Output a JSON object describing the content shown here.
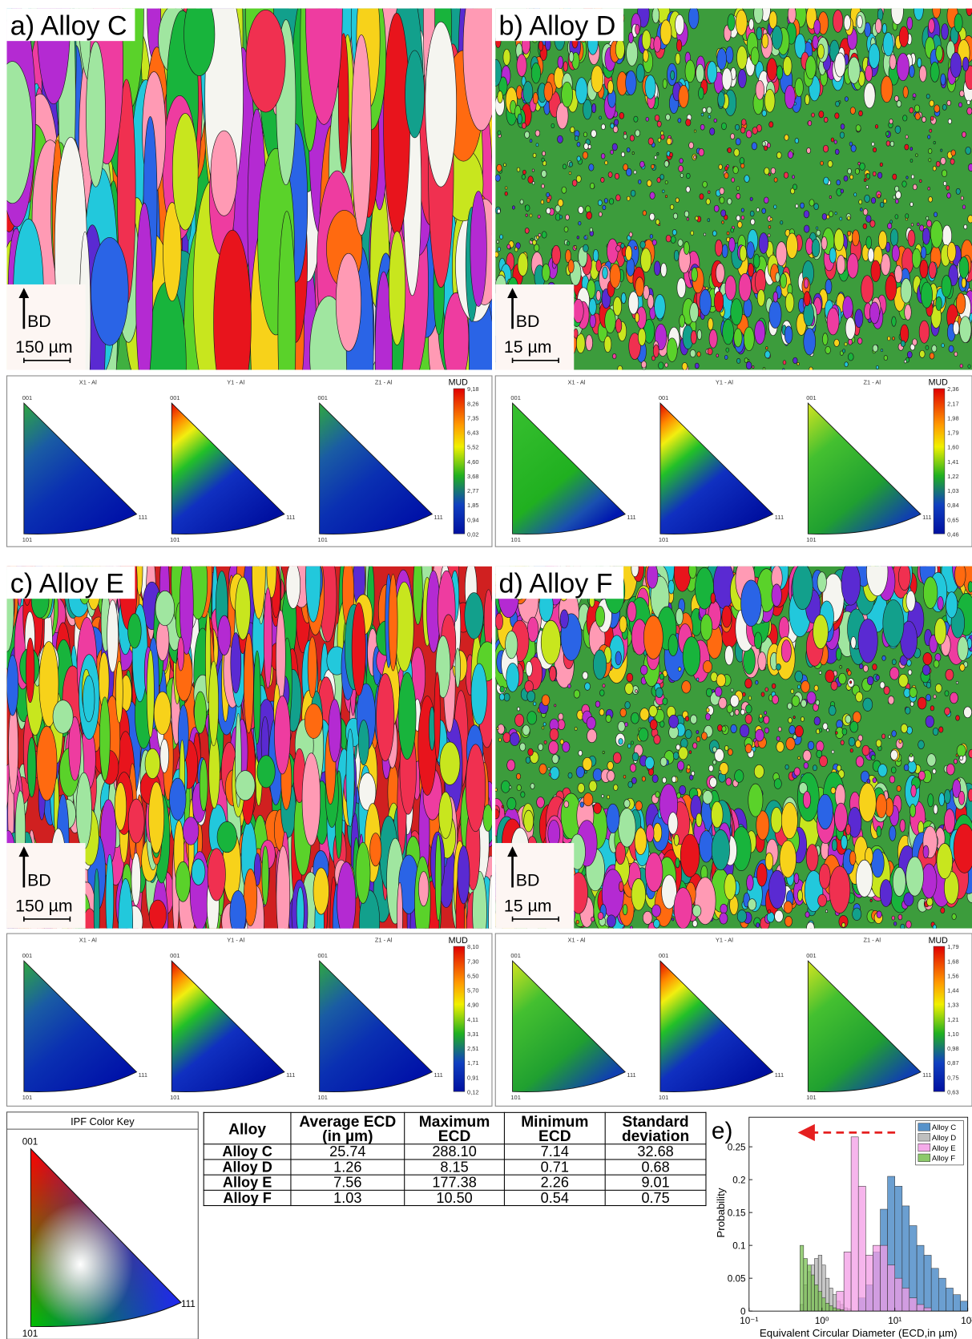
{
  "panels": [
    {
      "label": "a) Alloy C",
      "scale": "150 µm",
      "colorbar_ticks": [
        "9,18",
        "8,26",
        "7,35",
        "6,43",
        "5,52",
        "4,60",
        "3,68",
        "2,77",
        "1,85",
        "0,94",
        "0,02"
      ]
    },
    {
      "label": "b) Alloy D",
      "scale": "15 µm",
      "colorbar_ticks": [
        "2,36",
        "2,17",
        "1,98",
        "1,79",
        "1,60",
        "1,41",
        "1,22",
        "1,03",
        "0,84",
        "0,65",
        "0,46"
      ]
    },
    {
      "label": "c) Alloy E",
      "scale": "150 µm",
      "colorbar_ticks": [
        "8,10",
        "7,30",
        "6,50",
        "5,70",
        "4,90",
        "4,11",
        "3,31",
        "2,51",
        "1,71",
        "0,91",
        "0,12"
      ]
    },
    {
      "label": "d) Alloy F",
      "scale": "15 µm",
      "colorbar_ticks": [
        "1,79",
        "1,68",
        "1,56",
        "1,44",
        "1,33",
        "1,21",
        "1,10",
        "0,98",
        "0,87",
        "0,75",
        "0,63"
      ]
    }
  ],
  "bd": "BD",
  "ipf_titles": [
    "X1 - Al",
    "Y1 - Al",
    "Z1 - Al"
  ],
  "ipf_corners": [
    "001",
    "101",
    "111"
  ],
  "mud": "MUD",
  "ipf_key": {
    "title": "IPF Color Key"
  },
  "table": {
    "header": [
      "Alloy",
      "Average ECD (in µm)",
      "Maximum ECD",
      "Minimum ECD",
      "Standard deviation"
    ],
    "rows": [
      [
        "Alloy C",
        "25.74",
        "288.10",
        "7.14",
        "32.68"
      ],
      [
        "Alloy D",
        "1.26",
        "8.15",
        "0.71",
        "0.68"
      ],
      [
        "Alloy E",
        "7.56",
        "177.38",
        "2.26",
        "9.01"
      ],
      [
        "Alloy F",
        "1.03",
        "10.50",
        "0.54",
        "0.75"
      ]
    ]
  },
  "chart_data": {
    "type": "histogram",
    "panel_label": "e)",
    "xlabel": "Equivalent Circular Diameter (ECD,in µm)",
    "ylabel": "Probability",
    "xscale": "log",
    "xlim": [
      0.1,
      100
    ],
    "xticks": [
      {
        "value": 0.1,
        "label": "10⁻¹"
      },
      {
        "value": 1,
        "label": "10⁰"
      },
      {
        "value": 10,
        "label": "10¹"
      },
      {
        "value": 100,
        "label": "10²"
      }
    ],
    "ylim": [
      0,
      0.295
    ],
    "yticks": [
      0,
      0.05,
      0.1,
      0.15,
      0.2,
      0.25
    ],
    "legend": "upper right",
    "series": [
      {
        "name": "Alloy C",
        "color": "#3a7fc1",
        "bins": [
          3.16,
          3.98,
          5.01,
          6.31,
          7.94,
          10,
          12.6,
          15.8,
          20,
          25.1,
          31.6,
          39.8,
          50.1,
          63.1,
          79.4,
          100
        ],
        "values": [
          0.02,
          0.04,
          0.09,
          0.155,
          0.205,
          0.19,
          0.16,
          0.13,
          0.1,
          0.085,
          0.065,
          0.05,
          0.035,
          0.025,
          0.015
        ]
      },
      {
        "name": "Alloy D",
        "color": "#b4b4b4",
        "bins": [
          0.5,
          0.56,
          0.63,
          0.71,
          0.79,
          0.89,
          1.0,
          1.12,
          1.26,
          1.41,
          1.58,
          1.78,
          2.0,
          2.24,
          2.51
        ],
        "values": [
          0.01,
          0.04,
          0.06,
          0.07,
          0.08,
          0.085,
          0.07,
          0.05,
          0.035,
          0.025,
          0.015,
          0.01,
          0.005,
          0.003
        ]
      },
      {
        "name": "Alloy E",
        "color": "#f39ce6",
        "bins": [
          1.58,
          2.0,
          2.51,
          3.16,
          3.98,
          5.01,
          6.31,
          7.94,
          10,
          12.6,
          15.8,
          20,
          25.1,
          31.6
        ],
        "values": [
          0.03,
          0.09,
          0.265,
          0.19,
          0.085,
          0.1,
          0.1,
          0.07,
          0.05,
          0.035,
          0.02,
          0.01,
          0.005
        ]
      },
      {
        "name": "Alloy F",
        "color": "#78c050",
        "bins": [
          0.5,
          0.56,
          0.63,
          0.71,
          0.79,
          0.89,
          1.0,
          1.12,
          1.26,
          1.41,
          1.58,
          1.78,
          2.0
        ],
        "values": [
          0.1,
          0.08,
          0.07,
          0.055,
          0.04,
          0.03,
          0.02,
          0.012,
          0.008,
          0.005,
          0.003,
          0.002
        ]
      }
    ]
  }
}
